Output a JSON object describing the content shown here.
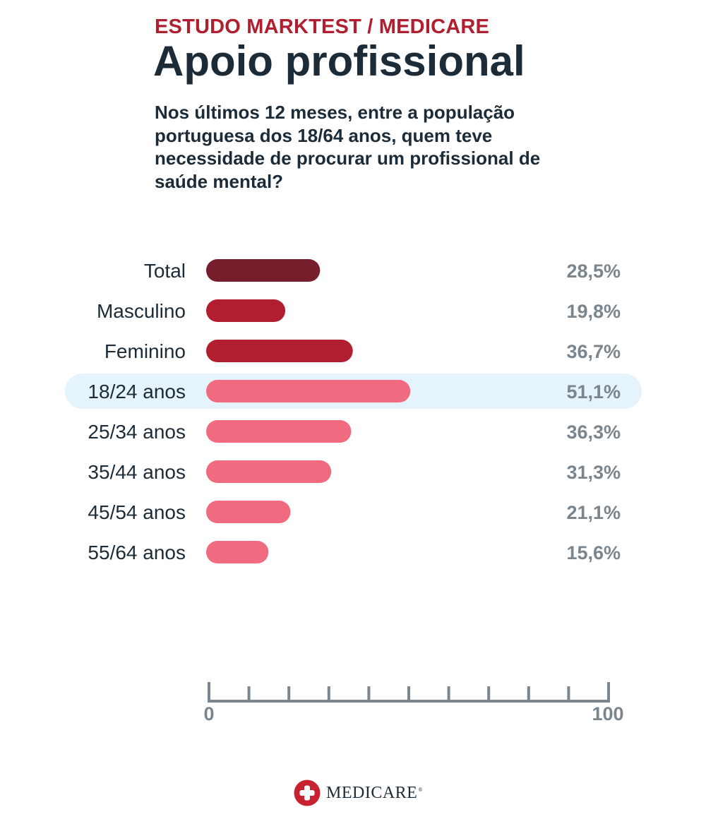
{
  "header": {
    "kicker": "ESTUDO MARKTEST / MEDICARE",
    "title": "Apoio profissional",
    "subtitle": "Nos últimos 12 meses, entre a população portuguesa dos 18/64 anos, quem teve necessidade de procurar um profissional de saúde mental?"
  },
  "chart_data": {
    "type": "bar",
    "orientation": "horizontal",
    "xlim": [
      0,
      100
    ],
    "ticks": [
      "0",
      "100"
    ],
    "highlighted_category": "18/24 anos",
    "colors": {
      "total": "#761e2c",
      "gender": "#b01e30",
      "age": "#f06b7f",
      "highlight_band": "#e5f3fc",
      "value_text": "#7a858d",
      "axis": "#7a858d",
      "label_text": "#1c2b38"
    },
    "groups": [
      {
        "bars": [
          {
            "label": "Total",
            "value": 28.5,
            "display": "28,5%"
          }
        ]
      },
      {
        "bars": [
          {
            "label": "Masculino",
            "value": 19.8,
            "display": "19,8%"
          },
          {
            "label": "Feminino",
            "value": 36.7,
            "display": "36,7%"
          }
        ]
      },
      {
        "bars": [
          {
            "label": "18/24 anos",
            "value": 51.1,
            "display": "51,1%"
          },
          {
            "label": "25/34 anos",
            "value": 36.3,
            "display": "36,3%"
          },
          {
            "label": "35/44 anos",
            "value": 31.3,
            "display": "31,3%"
          },
          {
            "label": "45/54 anos",
            "value": 21.1,
            "display": "21,1%"
          },
          {
            "label": "55/64 anos",
            "value": 15.6,
            "display": "15,6%"
          }
        ]
      }
    ]
  },
  "footer": {
    "brand": "MEDICARE",
    "brand_mark": "®",
    "brand_color": "#c8212f",
    "logo_icon": "cross-icon"
  }
}
